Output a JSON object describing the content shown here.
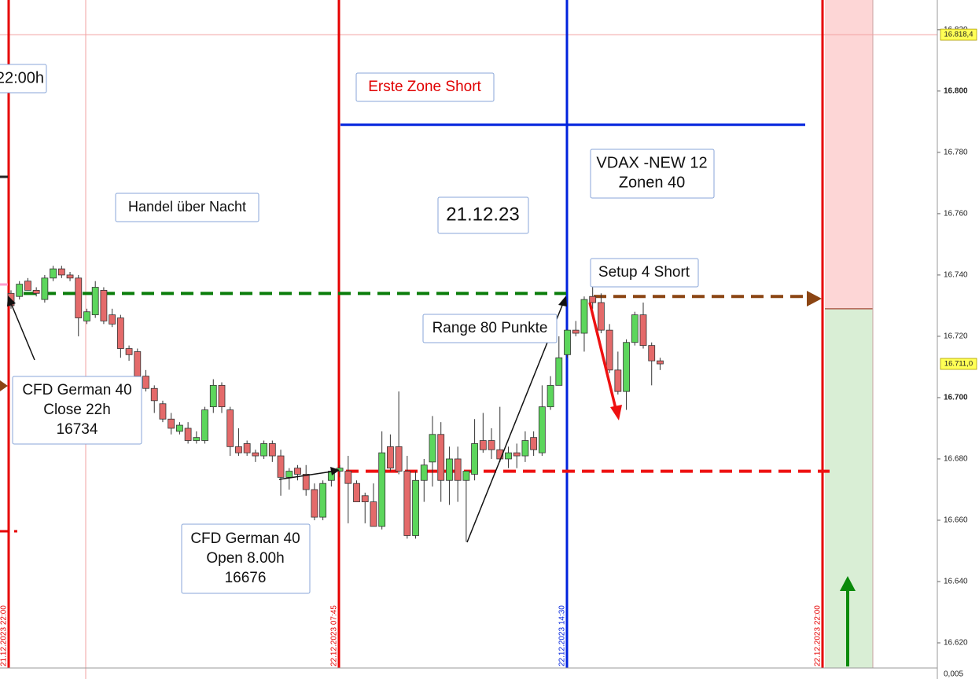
{
  "chart_data": {
    "type": "candlestick",
    "ylim": [
      16611.8,
      16829.7
    ],
    "yticks": [
      {
        "value": 16620,
        "label": "16.620"
      },
      {
        "value": 16640,
        "label": "16.640"
      },
      {
        "value": 16660,
        "label": "16.660"
      },
      {
        "value": 16680,
        "label": "16.680"
      },
      {
        "value": 16700,
        "label": "16.700"
      },
      {
        "value": 16720,
        "label": "16.720"
      },
      {
        "value": 16740,
        "label": "16.740"
      },
      {
        "value": 16760,
        "label": "16.760"
      },
      {
        "value": 16780,
        "label": "16.780"
      },
      {
        "value": 16800,
        "label": "16.800"
      },
      {
        "value": 16820,
        "label": "16.820"
      }
    ],
    "bottom_label": "0,005",
    "up_color": "#5cd65c",
    "down_color": "#e46a6a",
    "open": [
      16734,
      16733,
      16738,
      16735,
      16732,
      16739,
      16742,
      16740,
      16739,
      16725,
      16727,
      16735,
      16727,
      16726,
      16716,
      16715,
      16707,
      16703,
      16698,
      16693,
      16689,
      16690,
      16686,
      16686,
      16697,
      16704,
      16696,
      16684,
      16685,
      16682,
      16681,
      16685,
      16681,
      16674,
      16677,
      16675,
      16670,
      16661,
      16673,
      16676,
      16676,
      16672,
      16668,
      16666,
      16658,
      16684,
      16684,
      16676,
      16655,
      16673,
      16679,
      16688,
      16673,
      16680,
      16673,
      16675,
      16686,
      16686,
      16683,
      16680,
      16682,
      16681,
      16687,
      16682,
      16697,
      16704,
      16714,
      16722,
      16721,
      16733,
      16731,
      16722,
      16709,
      16702,
      16718,
      16727,
      16717,
      16712
    ],
    "high": [
      16735,
      16738,
      16739,
      16736,
      16740,
      16743,
      16743,
      16741,
      16740,
      16729,
      16738,
      16736,
      16729,
      16727,
      16717,
      16716,
      16709,
      16704,
      16699,
      16695,
      16692,
      16692,
      16689,
      16697,
      16706,
      16705,
      16697,
      16690,
      16686,
      16683,
      16686,
      16686,
      16683,
      16677,
      16678,
      16678,
      16672,
      16673,
      16677,
      16678,
      16681,
      16673,
      16669,
      16672,
      16689,
      16688,
      16702,
      16681,
      16676,
      16680,
      16694,
      16692,
      16684,
      16684,
      16676,
      16693,
      16695,
      16690,
      16697,
      16684,
      16685,
      16689,
      16689,
      16704,
      16707,
      16720,
      16722,
      16725,
      16733,
      16739,
      16734,
      16724,
      16715,
      16719,
      16728,
      16731,
      16718,
      16713
    ],
    "low": [
      16729,
      16732,
      16735,
      16733,
      16731,
      16738,
      16739,
      16738,
      16720,
      16724,
      16726,
      16724,
      16723,
      16713,
      16712,
      16705,
      16702,
      16695,
      16692,
      16688,
      16688,
      16685,
      16685,
      16685,
      16695,
      16695,
      16681,
      16681,
      16681,
      16679,
      16680,
      16679,
      16668,
      16670,
      16673,
      16668,
      16660,
      16660,
      16671,
      16674,
      16659,
      16666,
      16659,
      16658,
      16657,
      16676,
      16675,
      16654,
      16654,
      16666,
      16671,
      16666,
      16665,
      16666,
      16653,
      16673,
      16682,
      16680,
      16679,
      16677,
      16677,
      16679,
      16681,
      16681,
      16696,
      16704,
      16713,
      16720,
      16715,
      16729,
      16721,
      16708,
      16701,
      16696,
      16717,
      16716,
      16704,
      16709
    ],
    "close": [
      16730,
      16737,
      16735,
      16734,
      16739,
      16742,
      16740,
      16739,
      16726,
      16728,
      16736,
      16725,
      16724,
      16716,
      16714,
      16707,
      16703,
      16699,
      16693,
      16690,
      16691,
      16686,
      16687,
      16696,
      16704,
      16697,
      16684,
      16682,
      16682,
      16681,
      16685,
      16681,
      16674,
      16676,
      16675,
      16670,
      16661,
      16672,
      16676,
      16677,
      16672,
      16666,
      16666,
      16658,
      16682,
      16677,
      16676,
      16655,
      16673,
      16678,
      16688,
      16673,
      16680,
      16673,
      16676,
      16685,
      16683,
      16683,
      16680,
      16682,
      16681,
      16686,
      16683,
      16697,
      16704,
      16713,
      16722,
      16721,
      16732,
      16731,
      16722,
      16709,
      16702,
      16718,
      16727,
      16717,
      16712,
      16711
    ],
    "sessions": [
      {
        "label": "21.12.2023  22:00",
        "color": "#e60000"
      },
      {
        "label": "22.12.2023  07:45",
        "color": "#e60000"
      },
      {
        "label": "22.12.2023  14:30",
        "color": "#0022dd"
      },
      {
        "label": "22.12.2023  22:00",
        "color": "#e60000"
      }
    ],
    "levels": [
      {
        "value": 16734,
        "color": "#0a7d0a",
        "dashed": true
      },
      {
        "value": 16676,
        "color": "#ee1111",
        "dashed": true
      },
      {
        "value": 16733,
        "color": "#8b4513",
        "dashed": true
      },
      {
        "value": 16789,
        "color": "#0022dd",
        "dashed": false
      }
    ],
    "zone_split": 16729,
    "zones": [
      {
        "color": "#fdd6d6"
      },
      {
        "color": "#d9eed5"
      }
    ],
    "price_markers": [
      {
        "value": 16818.4,
        "label": "16.818,4"
      },
      {
        "value": 16711.0,
        "label": "16.711,0"
      }
    ],
    "annotations": [
      {
        "lines": [
          "22:00h"
        ]
      },
      {
        "lines": [
          "Erste Zone Short"
        ],
        "color": "#e00000"
      },
      {
        "lines": [
          "Handel über Nacht"
        ]
      },
      {
        "lines": [
          "21.12.23"
        ]
      },
      {
        "lines": [
          "VDAX -NEW 12",
          "Zonen 40"
        ]
      },
      {
        "lines": [
          "Setup 4 Short"
        ]
      },
      {
        "lines": [
          "Range 80 Punkte"
        ]
      },
      {
        "lines": [
          "CFD German 40",
          "Close 22h",
          "16734"
        ]
      },
      {
        "lines": [
          "CFD German 40",
          "Open 8.00h",
          "16676"
        ]
      }
    ]
  }
}
